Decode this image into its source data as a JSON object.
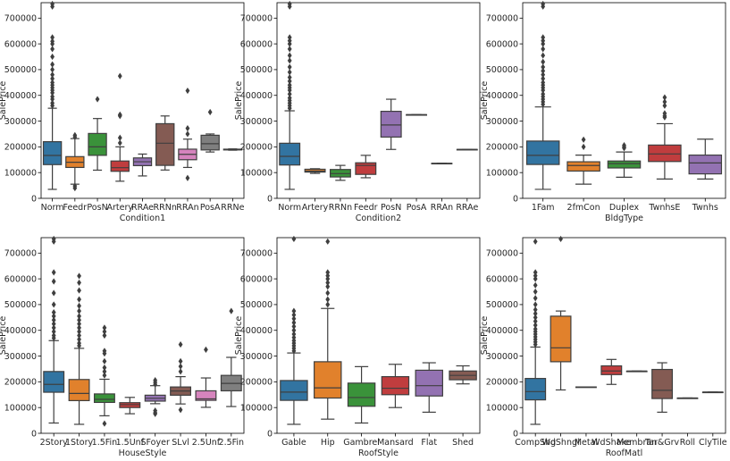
{
  "chart_data": [
    {
      "type": "box",
      "xlabel": "Condition1",
      "ylabel": "SalePrice",
      "ylim": [
        0,
        760000
      ],
      "yticks": [
        0,
        100000,
        200000,
        300000,
        400000,
        500000,
        600000,
        700000
      ],
      "categories": [
        "Norm",
        "Feedr",
        "PosN",
        "Artery",
        "RRAe",
        "RRNn",
        "RRAn",
        "PosA",
        "RRNe"
      ],
      "boxes": [
        {
          "category": "Norm",
          "color": "#3274a1",
          "whislo": 34900,
          "q1": 131000,
          "med": 166500,
          "q3": 220000,
          "whishi": 350000,
          "fliers": [
            360000,
            370000,
            385000,
            395000,
            410000,
            420000,
            430000,
            440000,
            450000,
            465000,
            480000,
            500000,
            520000,
            550000,
            580000,
            600000,
            610000,
            625000,
            745000,
            755000
          ]
        },
        {
          "category": "Feedr",
          "color": "#e1812c",
          "whislo": 55000,
          "q1": 120000,
          "med": 140000,
          "q3": 162000,
          "whishi": 232000,
          "fliers": [
            40000,
            48000,
            238000,
            245000
          ]
        },
        {
          "category": "PosN",
          "color": "#3a923a",
          "whislo": 109500,
          "q1": 167000,
          "med": 200000,
          "q3": 252000,
          "whishi": 310000,
          "fliers": [
            385000
          ]
        },
        {
          "category": "Artery",
          "color": "#c03d3e",
          "whislo": 66500,
          "q1": 105000,
          "med": 119000,
          "q3": 145000,
          "whishi": 200000,
          "fliers": [
            215000,
            235000,
            320000,
            325000,
            475000
          ]
        },
        {
          "category": "RRAe",
          "color": "#9372b2",
          "whislo": 87000,
          "q1": 127000,
          "med": 142000,
          "q3": 157000,
          "whishi": 172000,
          "fliers": []
        },
        {
          "category": "RRNn",
          "color": "#845b53",
          "whislo": 110000,
          "q1": 128000,
          "med": 214000,
          "q3": 290000,
          "whishi": 320000,
          "fliers": []
        },
        {
          "category": "RRAn",
          "color": "#d684bd",
          "whislo": 120000,
          "q1": 150000,
          "med": 171000,
          "q3": 191000,
          "whishi": 230000,
          "fliers": [
            79000,
            250000,
            272000,
            418000
          ]
        },
        {
          "category": "PosA",
          "color": "#7f7f7f",
          "whislo": 180000,
          "q1": 188000,
          "med": 212000,
          "q3": 245000,
          "whishi": 250000,
          "fliers": [
            335000
          ]
        },
        {
          "category": "RRNe",
          "color": "#a9aa35",
          "whislo": 187000,
          "q1": 188000,
          "med": 190000,
          "q3": 191000,
          "whishi": 192000,
          "fliers": []
        }
      ]
    },
    {
      "type": "box",
      "xlabel": "Condition2",
      "ylabel": "SalePrice",
      "ylim": [
        0,
        760000
      ],
      "yticks": [
        0,
        100000,
        200000,
        300000,
        400000,
        500000,
        600000,
        700000
      ],
      "categories": [
        "Norm",
        "Artery",
        "RRNn",
        "Feedr",
        "PosN",
        "PosA",
        "RRAn",
        "RRAe"
      ],
      "boxes": [
        {
          "category": "Norm",
          "color": "#3274a1",
          "whislo": 34900,
          "q1": 129500,
          "med": 163000,
          "q3": 214000,
          "whishi": 340000,
          "fliers": [
            350000,
            360000,
            370000,
            380000,
            390000,
            405000,
            420000,
            430000,
            440000,
            455000,
            470000,
            490000,
            510000,
            535000,
            555000,
            580000,
            600000,
            612000,
            625000,
            745000,
            755000
          ]
        },
        {
          "category": "Artery",
          "color": "#e1812c",
          "whislo": 97000,
          "q1": 102000,
          "med": 106000,
          "q3": 113000,
          "whishi": 115000,
          "fliers": []
        },
        {
          "category": "RRNn",
          "color": "#3a923a",
          "whislo": 70000,
          "q1": 83000,
          "med": 96000,
          "q3": 112000,
          "whishi": 128000,
          "fliers": []
        },
        {
          "category": "Feedr",
          "color": "#c03d3e",
          "whislo": 80000,
          "q1": 93000,
          "med": 128000,
          "q3": 138000,
          "whishi": 167000,
          "fliers": []
        },
        {
          "category": "PosN",
          "color": "#9372b2",
          "whislo": 190000,
          "q1": 238000,
          "med": 285000,
          "q3": 338000,
          "whishi": 385000,
          "fliers": []
        },
        {
          "category": "PosA",
          "color": "#845b53",
          "whislo": 325000,
          "q1": 325000,
          "med": 325000,
          "q3": 325000,
          "whishi": 325000,
          "fliers": []
        },
        {
          "category": "RRAn",
          "color": "#d684bd",
          "whislo": 136000,
          "q1": 136000,
          "med": 136000,
          "q3": 136000,
          "whishi": 136000,
          "fliers": []
        },
        {
          "category": "RRAe",
          "color": "#7f7f7f",
          "whislo": 190000,
          "q1": 190000,
          "med": 190000,
          "q3": 190000,
          "whishi": 190000,
          "fliers": []
        }
      ]
    },
    {
      "type": "box",
      "xlabel": "BldgType",
      "ylabel": "SalePrice",
      "ylim": [
        0,
        760000
      ],
      "yticks": [
        0,
        100000,
        200000,
        300000,
        400000,
        500000,
        600000,
        700000
      ],
      "categories": [
        "1Fam",
        "2fmCon",
        "Duplex",
        "TwnhsE",
        "Twnhs"
      ],
      "boxes": [
        {
          "category": "1Fam",
          "color": "#3274a1",
          "whislo": 34900,
          "q1": 131500,
          "med": 167000,
          "q3": 222500,
          "whishi": 355000,
          "fliers": [
            365000,
            375000,
            385000,
            395000,
            405000,
            420000,
            430000,
            440000,
            450000,
            465000,
            480000,
            495000,
            510000,
            530000,
            555000,
            580000,
            600000,
            612000,
            625000,
            745000,
            755000
          ]
        },
        {
          "category": "2fmCon",
          "color": "#e1812c",
          "whislo": 55000,
          "q1": 106000,
          "med": 127500,
          "q3": 142000,
          "whishi": 168000,
          "fliers": [
            200000,
            228000
          ]
        },
        {
          "category": "Duplex",
          "color": "#3a923a",
          "whislo": 82000,
          "q1": 118000,
          "med": 135000,
          "q3": 145000,
          "whishi": 180000,
          "fliers": [
            195000,
            200000,
            206000
          ]
        },
        {
          "category": "TwnhsE",
          "color": "#c03d3e",
          "whislo": 75000,
          "q1": 143000,
          "med": 172500,
          "q3": 207000,
          "whishi": 290000,
          "fliers": [
            315000,
            320000,
            330000,
            360000,
            375000,
            392000
          ]
        },
        {
          "category": "Twnhs",
          "color": "#9372b2",
          "whislo": 75000,
          "q1": 95000,
          "med": 137500,
          "q3": 168000,
          "whishi": 230000,
          "fliers": []
        }
      ]
    },
    {
      "type": "box",
      "xlabel": "HouseStyle",
      "ylabel": "SalePrice",
      "ylim": [
        0,
        760000
      ],
      "yticks": [
        0,
        100000,
        200000,
        300000,
        400000,
        500000,
        600000,
        700000
      ],
      "categories": [
        "2Story",
        "1Story",
        "1.5Fin",
        "1.5Unf",
        "SFoyer",
        "SLvl",
        "2.5Unf",
        "2.5Fin"
      ],
      "boxes": [
        {
          "category": "2Story",
          "color": "#3274a1",
          "whislo": 40000,
          "q1": 159500,
          "med": 190000,
          "q3": 240000,
          "whishi": 360000,
          "fliers": [
            370000,
            380000,
            395000,
            410000,
            425000,
            440000,
            455000,
            470000,
            500000,
            545000,
            590000,
            625000,
            745000,
            755000
          ]
        },
        {
          "category": "1Story",
          "color": "#e1812c",
          "whislo": 34900,
          "q1": 127000,
          "med": 154750,
          "q3": 209000,
          "whishi": 330000,
          "fliers": [
            340000,
            350000,
            365000,
            380000,
            395000,
            410000,
            425000,
            440000,
            455000,
            475000,
            495000,
            520000,
            555000,
            585000,
            611000
          ]
        },
        {
          "category": "1.5Fin",
          "color": "#3a923a",
          "whislo": 68000,
          "q1": 120000,
          "med": 132000,
          "q3": 153000,
          "whishi": 210000,
          "fliers": [
            37900,
            225000,
            240000,
            255000,
            280000,
            310000,
            320000,
            380000,
            395000,
            410000
          ]
        },
        {
          "category": "1.5Unf",
          "color": "#c03d3e",
          "whislo": 76000,
          "q1": 100000,
          "med": 111250,
          "q3": 119000,
          "whishi": 139500,
          "fliers": []
        },
        {
          "category": "SFoyer",
          "color": "#9372b2",
          "whislo": 115000,
          "q1": 125000,
          "med": 135960,
          "q3": 148000,
          "whishi": 185000,
          "fliers": [
            75500,
            80000,
            88000,
            190000,
            198000,
            206000
          ]
        },
        {
          "category": "SLvl",
          "color": "#845b53",
          "whislo": 114000,
          "q1": 148000,
          "med": 164500,
          "q3": 180000,
          "whishi": 220000,
          "fliers": [
            91000,
            240000,
            260000,
            280000,
            345000
          ]
        },
        {
          "category": "2.5Unf",
          "color": "#d684bd",
          "whislo": 101000,
          "q1": 128000,
          "med": 133900,
          "q3": 165000,
          "whishi": 215000,
          "fliers": [
            325000
          ]
        },
        {
          "category": "2.5Fin",
          "color": "#7f7f7f",
          "whislo": 104000,
          "q1": 165000,
          "med": 194000,
          "q3": 225000,
          "whishi": 295000,
          "fliers": [
            475000
          ]
        }
      ]
    },
    {
      "type": "box",
      "xlabel": "RoofStyle",
      "ylabel": "SalePrice",
      "ylim": [
        0,
        760000
      ],
      "yticks": [
        0,
        100000,
        200000,
        300000,
        400000,
        500000,
        600000,
        700000
      ],
      "categories": [
        "Gable",
        "Hip",
        "Gambrel",
        "Mansard",
        "Flat",
        "Shed"
      ],
      "boxes": [
        {
          "category": "Gable",
          "color": "#3274a1",
          "whislo": 34900,
          "q1": 128000,
          "med": 160000,
          "q3": 205000,
          "whishi": 312000,
          "fliers": [
            320000,
            330000,
            340000,
            350000,
            360000,
            372000,
            385000,
            400000,
            415000,
            430000,
            445000,
            460000,
            475000,
            755000
          ]
        },
        {
          "category": "Hip",
          "color": "#e1812c",
          "whislo": 55000,
          "q1": 137000,
          "med": 176500,
          "q3": 278000,
          "whishi": 485000,
          "fliers": [
            500000,
            520000,
            545000,
            570000,
            585000,
            600000,
            612000,
            625000,
            745000
          ]
        },
        {
          "category": "Gambrel",
          "color": "#3a923a",
          "whislo": 40000,
          "q1": 105000,
          "med": 139000,
          "q3": 195000,
          "whishi": 259000,
          "fliers": []
        },
        {
          "category": "Mansard",
          "color": "#c03d3e",
          "whislo": 100000,
          "q1": 150000,
          "med": 175000,
          "q3": 220000,
          "whishi": 268000,
          "fliers": []
        },
        {
          "category": "Flat",
          "color": "#9372b2",
          "whislo": 82000,
          "q1": 145000,
          "med": 185000,
          "q3": 245000,
          "whishi": 274000,
          "fliers": []
        },
        {
          "category": "Shed",
          "color": "#845b53",
          "whislo": 192000,
          "q1": 208000,
          "med": 225000,
          "q3": 242000,
          "whishi": 262000,
          "fliers": []
        }
      ]
    },
    {
      "type": "box",
      "xlabel": "RoofMatl",
      "ylabel": "SalePrice",
      "ylim": [
        0,
        760000
      ],
      "yticks": [
        0,
        100000,
        200000,
        300000,
        400000,
        500000,
        600000,
        700000
      ],
      "categories": [
        "CompShg",
        "WdShngl",
        "Metal",
        "WdShake",
        "Membran",
        "Tar&Grv",
        "Roll",
        "ClyTile"
      ],
      "boxes": [
        {
          "category": "CompShg",
          "color": "#3274a1",
          "whislo": 34900,
          "q1": 129900,
          "med": 162000,
          "q3": 213000,
          "whishi": 335000,
          "fliers": [
            345000,
            355000,
            365000,
            375000,
            385000,
            395000,
            405000,
            420000,
            435000,
            450000,
            465000,
            480000,
            500000,
            525000,
            550000,
            575000,
            600000,
            612000,
            625000,
            745000
          ]
        },
        {
          "category": "WdShngl",
          "color": "#e1812c",
          "whislo": 168500,
          "q1": 278000,
          "med": 332000,
          "q3": 455000,
          "whishi": 475000,
          "fliers": [
            755000
          ]
        },
        {
          "category": "Metal",
          "color": "#3a923a",
          "whislo": 180000,
          "q1": 180000,
          "med": 180000,
          "q3": 180000,
          "whishi": 180000,
          "fliers": []
        },
        {
          "category": "WdShake",
          "color": "#c03d3e",
          "whislo": 190000,
          "q1": 228000,
          "med": 242000,
          "q3": 262000,
          "whishi": 287000,
          "fliers": []
        },
        {
          "category": "Membran",
          "color": "#9372b2",
          "whislo": 241500,
          "q1": 241500,
          "med": 241500,
          "q3": 241500,
          "whishi": 241500,
          "fliers": []
        },
        {
          "category": "Tar&Grv",
          "color": "#845b53",
          "whislo": 82000,
          "q1": 135000,
          "med": 167000,
          "q3": 248000,
          "whishi": 274000,
          "fliers": []
        },
        {
          "category": "Roll",
          "color": "#d684bd",
          "whislo": 137000,
          "q1": 137000,
          "med": 137000,
          "q3": 137000,
          "whishi": 137000,
          "fliers": []
        },
        {
          "category": "ClyTile",
          "color": "#7f7f7f",
          "whislo": 160000,
          "q1": 160000,
          "med": 160000,
          "q3": 160000,
          "whishi": 160000,
          "fliers": []
        }
      ]
    }
  ]
}
